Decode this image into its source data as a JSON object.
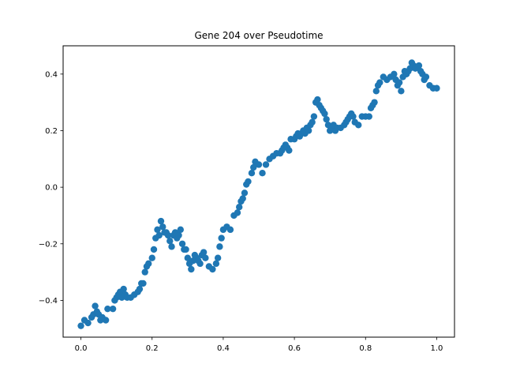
{
  "chart_data": {
    "type": "scatter",
    "title": "Gene 204 over Pseudotime",
    "xlabel": "",
    "ylabel": "",
    "xlim": [
      -0.05,
      1.05
    ],
    "ylim": [
      -0.53,
      0.5
    ],
    "xticks": [
      0.0,
      0.2,
      0.4,
      0.6,
      0.8,
      1.0
    ],
    "xtick_labels": [
      "0.0",
      "0.2",
      "0.4",
      "0.6",
      "0.8",
      "1.0"
    ],
    "yticks": [
      -0.4,
      -0.2,
      0.0,
      0.2,
      0.4
    ],
    "ytick_labels": [
      "−0.4",
      "−0.2",
      "0.0",
      "0.2",
      "0.4"
    ],
    "grid": false,
    "legend": "none",
    "point_color": "#1f77b4",
    "series": [
      {
        "x": [
          0.0,
          0.01,
          0.02,
          0.03,
          0.035,
          0.04,
          0.045,
          0.05,
          0.055,
          0.06,
          0.07,
          0.075,
          0.09,
          0.095,
          0.1,
          0.105,
          0.11,
          0.115,
          0.12,
          0.125,
          0.13,
          0.14,
          0.15,
          0.16,
          0.165,
          0.17,
          0.175,
          0.18,
          0.185,
          0.19,
          0.2,
          0.205,
          0.21,
          0.215,
          0.22,
          0.225,
          0.23,
          0.235,
          0.24,
          0.245,
          0.25,
          0.255,
          0.26,
          0.265,
          0.27,
          0.275,
          0.28,
          0.285,
          0.29,
          0.295,
          0.3,
          0.305,
          0.31,
          0.315,
          0.32,
          0.325,
          0.33,
          0.335,
          0.34,
          0.345,
          0.35,
          0.36,
          0.37,
          0.38,
          0.385,
          0.39,
          0.395,
          0.4,
          0.41,
          0.42,
          0.43,
          0.44,
          0.445,
          0.45,
          0.455,
          0.46,
          0.465,
          0.47,
          0.48,
          0.485,
          0.49,
          0.5,
          0.51,
          0.52,
          0.53,
          0.54,
          0.55,
          0.56,
          0.565,
          0.57,
          0.575,
          0.58,
          0.585,
          0.59,
          0.6,
          0.605,
          0.61,
          0.615,
          0.62,
          0.625,
          0.63,
          0.635,
          0.64,
          0.645,
          0.65,
          0.655,
          0.66,
          0.665,
          0.67,
          0.675,
          0.68,
          0.685,
          0.69,
          0.695,
          0.7,
          0.705,
          0.71,
          0.715,
          0.72,
          0.73,
          0.74,
          0.745,
          0.75,
          0.755,
          0.76,
          0.765,
          0.77,
          0.78,
          0.79,
          0.8,
          0.81,
          0.815,
          0.82,
          0.825,
          0.83,
          0.835,
          0.84,
          0.85,
          0.86,
          0.87,
          0.88,
          0.885,
          0.89,
          0.895,
          0.9,
          0.905,
          0.91,
          0.915,
          0.92,
          0.925,
          0.93,
          0.935,
          0.94,
          0.95,
          0.955,
          0.96,
          0.965,
          0.97,
          0.98,
          0.99,
          1.0
        ],
        "y": [
          -0.49,
          -0.47,
          -0.48,
          -0.46,
          -0.45,
          -0.42,
          -0.44,
          -0.45,
          -0.47,
          -0.46,
          -0.47,
          -0.43,
          -0.43,
          -0.4,
          -0.39,
          -0.38,
          -0.37,
          -0.39,
          -0.36,
          -0.38,
          -0.39,
          -0.39,
          -0.38,
          -0.37,
          -0.36,
          -0.34,
          -0.34,
          -0.3,
          -0.28,
          -0.27,
          -0.25,
          -0.22,
          -0.18,
          -0.15,
          -0.17,
          -0.12,
          -0.14,
          -0.16,
          -0.16,
          -0.17,
          -0.19,
          -0.21,
          -0.17,
          -0.16,
          -0.18,
          -0.17,
          -0.15,
          -0.2,
          -0.22,
          -0.22,
          -0.25,
          -0.27,
          -0.29,
          -0.26,
          -0.24,
          -0.25,
          -0.26,
          -0.27,
          -0.24,
          -0.23,
          -0.25,
          -0.28,
          -0.29,
          -0.27,
          -0.25,
          -0.21,
          -0.18,
          -0.15,
          -0.14,
          -0.15,
          -0.1,
          -0.09,
          -0.07,
          -0.05,
          -0.04,
          -0.02,
          0.01,
          0.02,
          0.05,
          0.07,
          0.09,
          0.08,
          0.05,
          0.08,
          0.1,
          0.11,
          0.12,
          0.12,
          0.13,
          0.14,
          0.15,
          0.14,
          0.13,
          0.17,
          0.17,
          0.18,
          0.19,
          0.18,
          0.19,
          0.2,
          0.19,
          0.21,
          0.2,
          0.22,
          0.23,
          0.25,
          0.3,
          0.31,
          0.29,
          0.28,
          0.27,
          0.26,
          0.24,
          0.22,
          0.2,
          0.21,
          0.22,
          0.2,
          0.21,
          0.21,
          0.22,
          0.23,
          0.24,
          0.25,
          0.26,
          0.25,
          0.23,
          0.22,
          0.25,
          0.25,
          0.25,
          0.28,
          0.29,
          0.3,
          0.34,
          0.36,
          0.37,
          0.39,
          0.38,
          0.39,
          0.4,
          0.38,
          0.36,
          0.37,
          0.34,
          0.39,
          0.41,
          0.4,
          0.41,
          0.42,
          0.44,
          0.43,
          0.42,
          0.43,
          0.41,
          0.4,
          0.38,
          0.39,
          0.36,
          0.35,
          0.35
        ]
      }
    ]
  }
}
